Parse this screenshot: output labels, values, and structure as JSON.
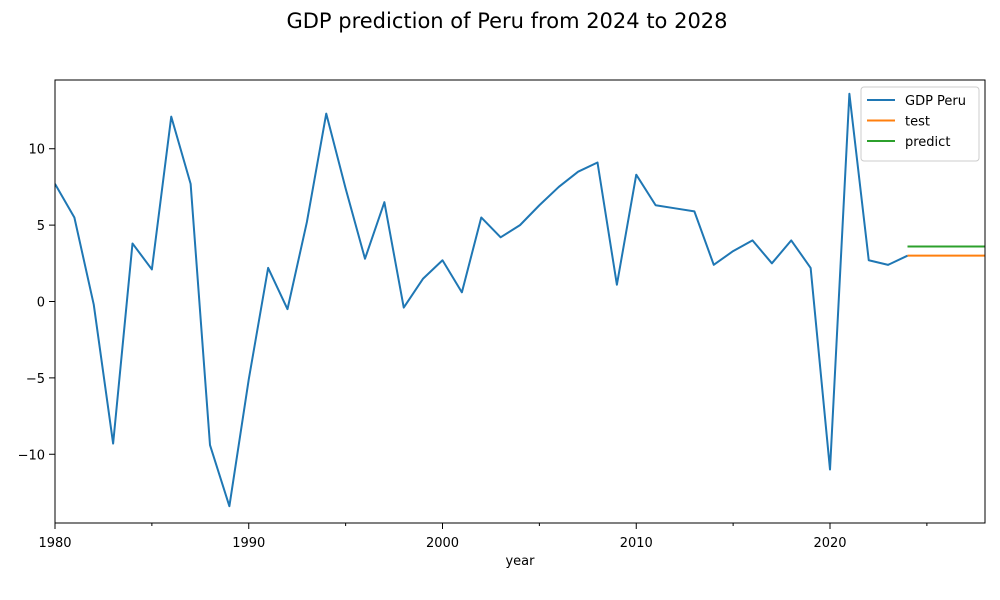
{
  "chart_data": {
    "type": "line",
    "title": "GDP prediction of Peru from 2024 to 2028",
    "xlabel": "year",
    "ylabel": "",
    "xlim": [
      1980,
      2028
    ],
    "ylim": [
      -14.5,
      14.5
    ],
    "x_ticks": [
      1980,
      1990,
      2000,
      2010,
      2020
    ],
    "x_minor_ticks": [
      1985,
      1995,
      2005,
      2015,
      2025
    ],
    "y_ticks": [
      -10,
      -5,
      0,
      5,
      10
    ],
    "y_tick_labels": [
      "−10",
      "−5",
      "0",
      "5",
      "10"
    ],
    "grid": false,
    "legend_position": "top-right",
    "series": [
      {
        "name": "GDP Peru",
        "color": "#1f77b4",
        "x": [
          1980,
          1981,
          1982,
          1983,
          1984,
          1985,
          1986,
          1987,
          1988,
          1989,
          1990,
          1991,
          1992,
          1993,
          1994,
          1995,
          1996,
          1997,
          1998,
          1999,
          2000,
          2001,
          2002,
          2003,
          2004,
          2005,
          2006,
          2007,
          2008,
          2009,
          2010,
          2011,
          2012,
          2013,
          2014,
          2015,
          2016,
          2017,
          2018,
          2019,
          2020,
          2021,
          2022,
          2023,
          2024
        ],
        "values": [
          7.7,
          5.5,
          -0.2,
          -9.3,
          3.8,
          2.1,
          12.1,
          7.7,
          -9.4,
          -13.4,
          -5.1,
          2.2,
          -0.5,
          5.2,
          12.3,
          7.4,
          2.8,
          6.5,
          -0.4,
          1.5,
          2.7,
          0.6,
          5.5,
          4.2,
          5.0,
          6.3,
          7.5,
          8.5,
          9.1,
          1.1,
          8.3,
          6.3,
          6.1,
          5.9,
          2.4,
          3.3,
          4.0,
          2.5,
          4.0,
          2.2,
          -11.0,
          13.6,
          2.7,
          2.4,
          3.0
        ]
      },
      {
        "name": "test",
        "color": "#ff7f0e",
        "x": [
          2024,
          2028
        ],
        "values": [
          3.0,
          3.0
        ]
      },
      {
        "name": "predict",
        "color": "#2ca02c",
        "x": [
          2024,
          2028
        ],
        "values": [
          3.6,
          3.6
        ]
      }
    ]
  }
}
